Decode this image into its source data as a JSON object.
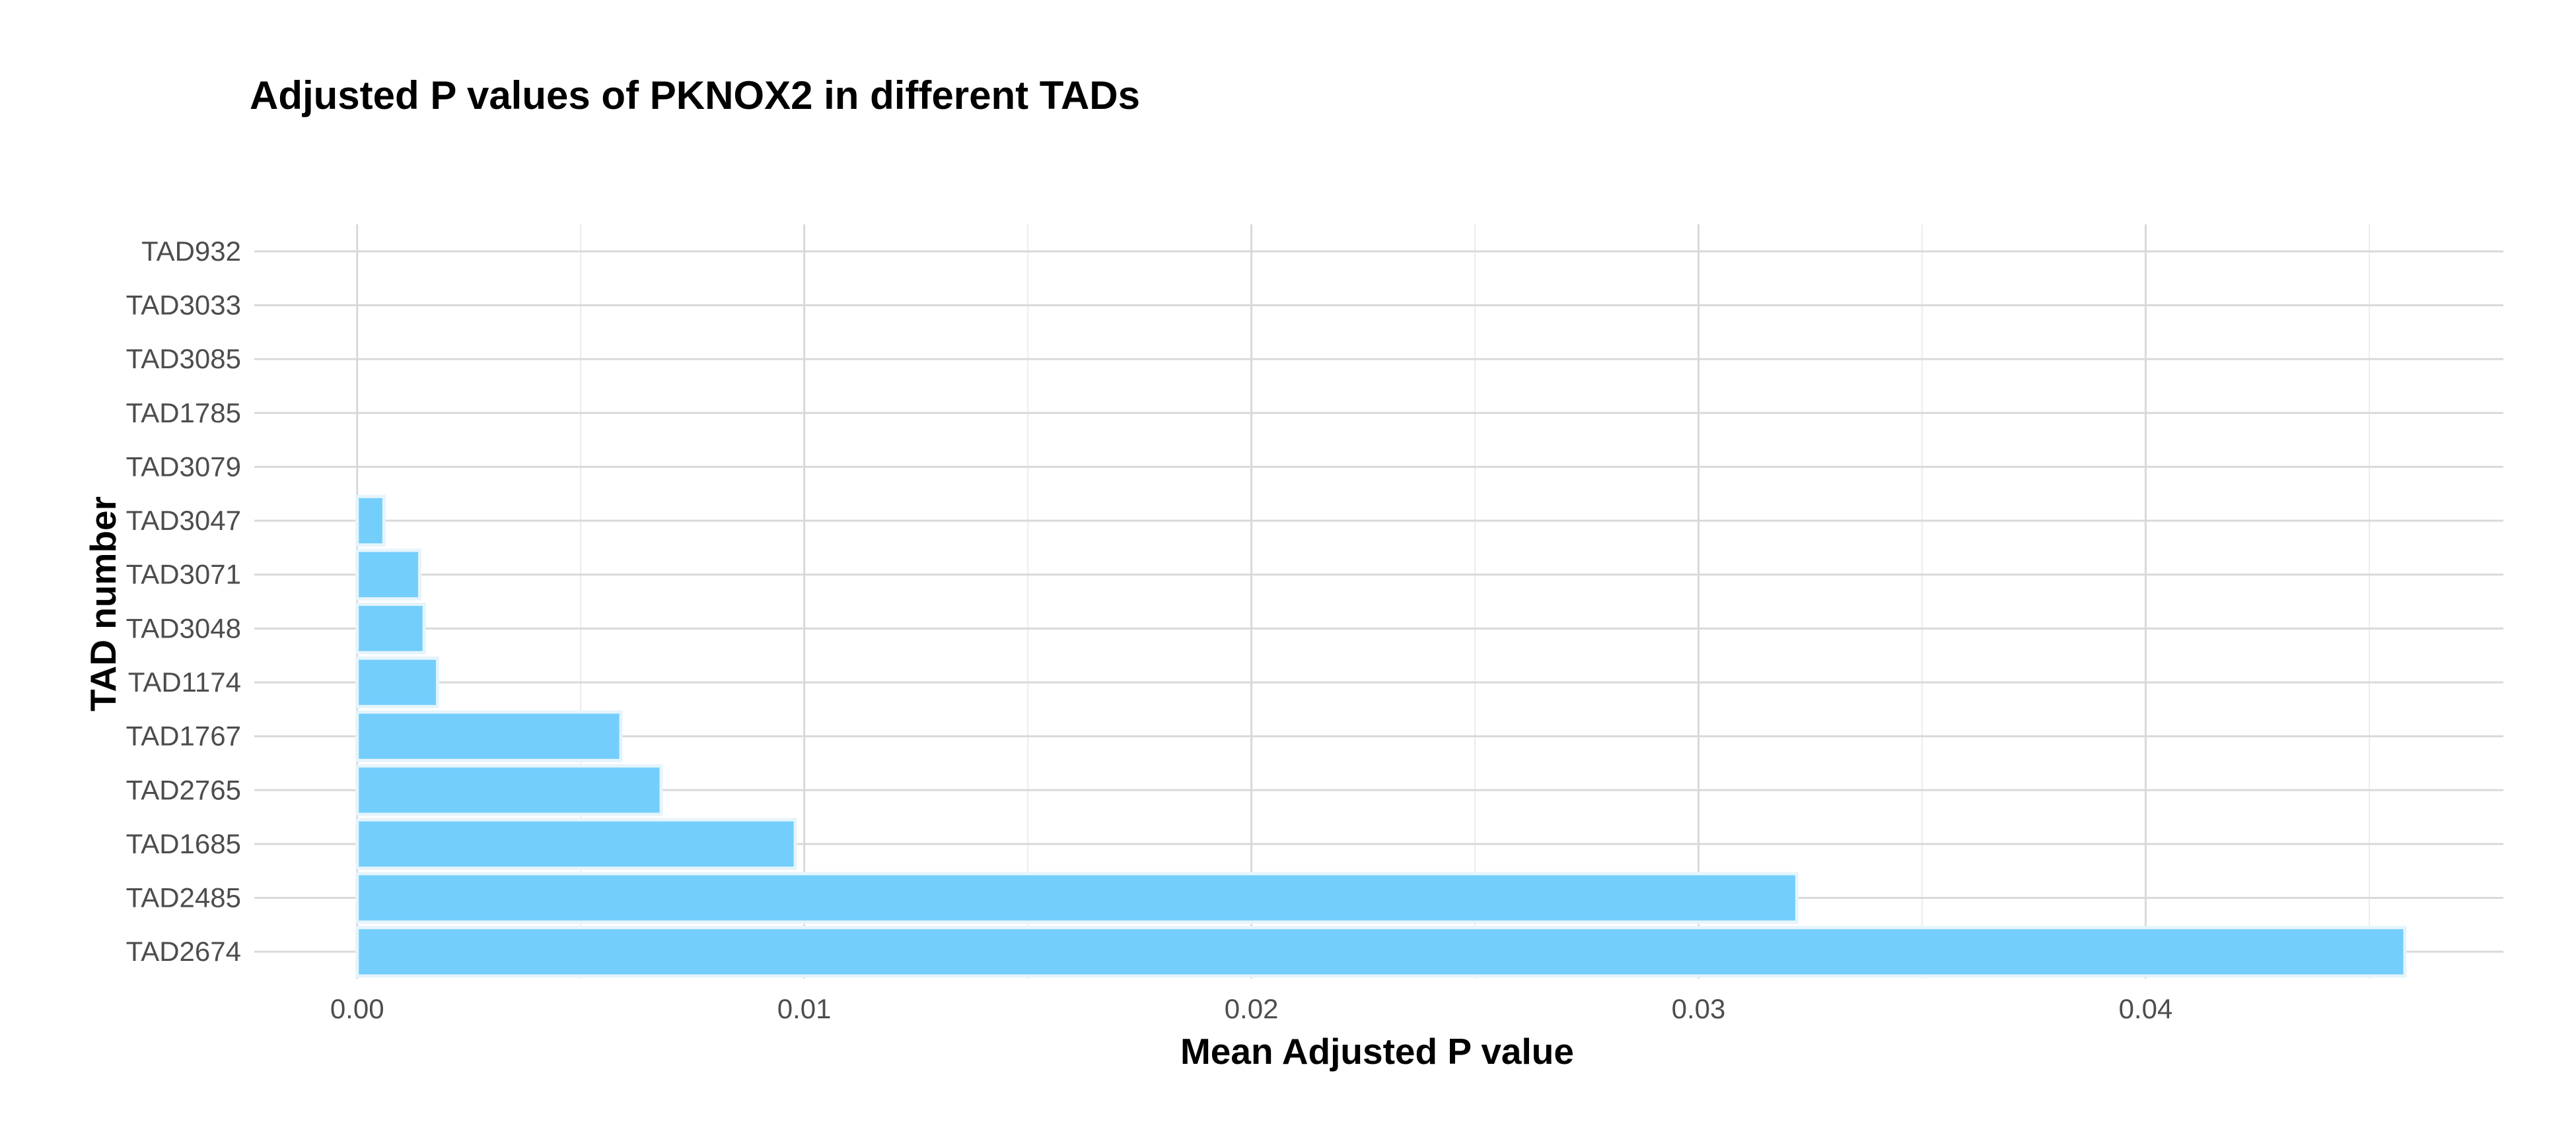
{
  "chart_data": {
    "type": "bar",
    "orientation": "horizontal",
    "title": "Adjusted P values of PKNOX2 in different TADs",
    "xlabel": "Mean Adjusted P value",
    "ylabel": "TAD number",
    "categories": [
      "TAD2674",
      "TAD2485",
      "TAD1685",
      "TAD2765",
      "TAD1767",
      "TAD1174",
      "TAD3048",
      "TAD3071",
      "TAD3047",
      "TAD3079",
      "TAD1785",
      "TAD3085",
      "TAD3033",
      "TAD932"
    ],
    "values": [
      0.0458,
      0.0322,
      0.0098,
      0.0068,
      0.0059,
      0.0018,
      0.0015,
      0.0014,
      0.0006,
      0.0,
      0.0,
      0.0,
      0.0,
      0.0
    ],
    "xlim": [
      -0.0023,
      0.048
    ],
    "xticks": [
      0.0,
      0.01,
      0.02,
      0.03,
      0.04
    ],
    "xtick_labels": [
      "0.00",
      "0.01",
      "0.02",
      "0.03",
      "0.04"
    ],
    "bar_color": "#74cefc",
    "grid": true,
    "legend": "none"
  }
}
